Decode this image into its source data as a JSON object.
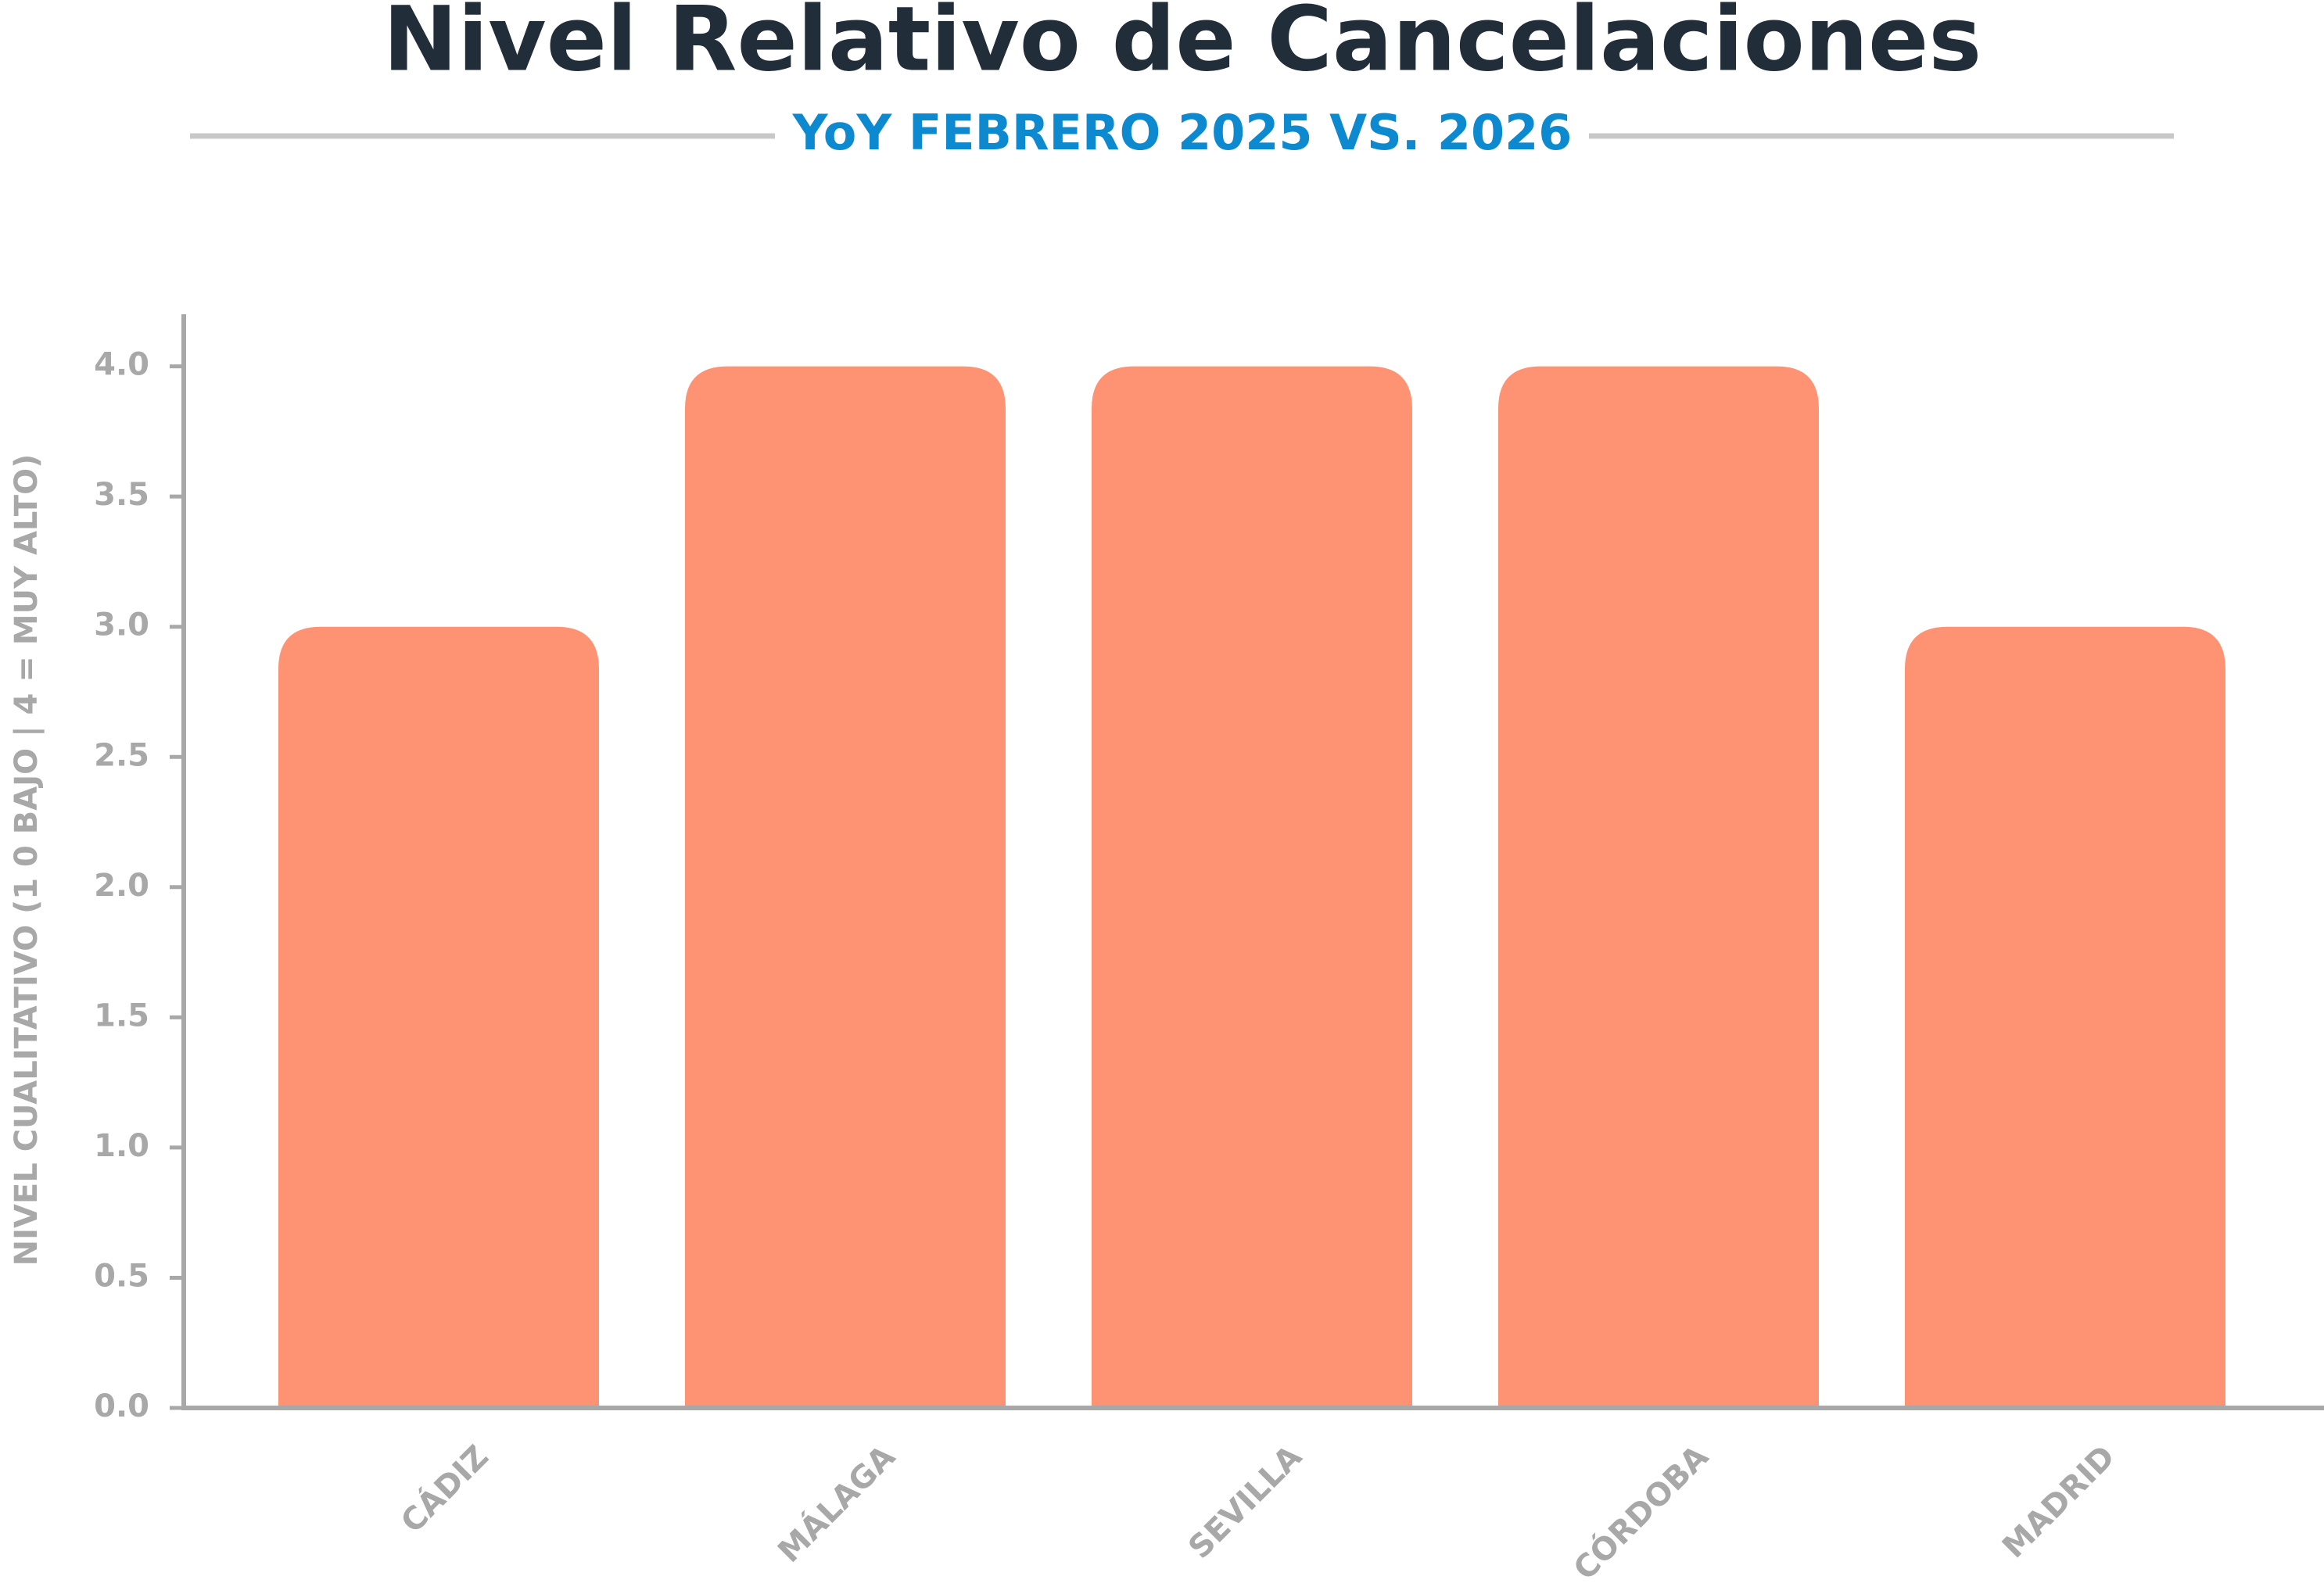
{
  "chart_data": {
    "type": "bar",
    "title": "Nivel Relativo de Cancelaciones",
    "subtitle": "YoY FEBRERO 2025 VS. 2026",
    "y_label": "NIVEL CUALITATIVO (1 0 BAJO | 4 = MUY ALTO)",
    "categories": [
      "CÁDIZ",
      "MÁLAGA",
      "SEVILLA",
      "CÓRDOBA",
      "MADRID"
    ],
    "values": [
      3,
      4,
      4,
      4,
      3
    ],
    "color": "#fe9373",
    "ylim": [
      0,
      4.2
    ],
    "yticks": [
      {
        "value": 0,
        "label": "0.0"
      },
      0.5,
      {
        "value": 1,
        "label": "1.0"
      },
      1.5,
      {
        "value": 2,
        "label": "2.0"
      },
      2.5,
      {
        "value": 3,
        "label": "3.0"
      },
      3.5,
      {
        "value": 4,
        "label": "4.0"
      }
    ],
    "grid": false
  }
}
